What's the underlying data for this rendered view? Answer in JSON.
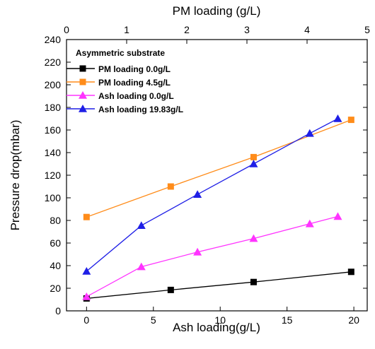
{
  "chart_data": {
    "type": "line",
    "xlabel": "Ash loading(g/L)",
    "x2label": "PM loading (g/L)",
    "ylabel": "Pressure drop(mbar)",
    "xlim": [
      -1.5,
      21
    ],
    "x2lim": [
      0,
      5
    ],
    "ylim": [
      0,
      240
    ],
    "xticks": [
      0,
      5,
      10,
      15,
      20
    ],
    "x2ticks": [
      0,
      1,
      2,
      3,
      4,
      5
    ],
    "yticks": [
      0,
      20,
      40,
      60,
      80,
      100,
      120,
      140,
      160,
      180,
      200,
      220,
      240
    ],
    "legend_title": "Asymmetric substrate",
    "legend_position": "top-left",
    "grid": false,
    "series": [
      {
        "name": "PM loading 0.0g/L",
        "color": "#000000",
        "marker": "square",
        "x": [
          0,
          6.3,
          12.5,
          19.8
        ],
        "y": [
          11,
          18.5,
          25.5,
          34.5
        ]
      },
      {
        "name": "PM loading 4.5g/L",
        "color": "#ff8c1a",
        "marker": "square",
        "x": [
          0,
          6.3,
          12.5,
          19.8
        ],
        "y": [
          83,
          110,
          136,
          169
        ]
      },
      {
        "name": "Ash loading 0.0g/L",
        "color": "#ff33ff",
        "marker": "triangle",
        "x": [
          0,
          4.1,
          8.3,
          12.5,
          16.7,
          18.8
        ],
        "y": [
          12.5,
          39,
          52,
          64,
          77,
          83.5
        ]
      },
      {
        "name": "Ash loading 19.83g/L",
        "color": "#1f1fe6",
        "marker": "triangle",
        "x": [
          0,
          4.1,
          8.3,
          12.5,
          16.7,
          18.8
        ],
        "y": [
          35,
          75.5,
          103,
          130,
          157,
          170
        ]
      }
    ]
  }
}
